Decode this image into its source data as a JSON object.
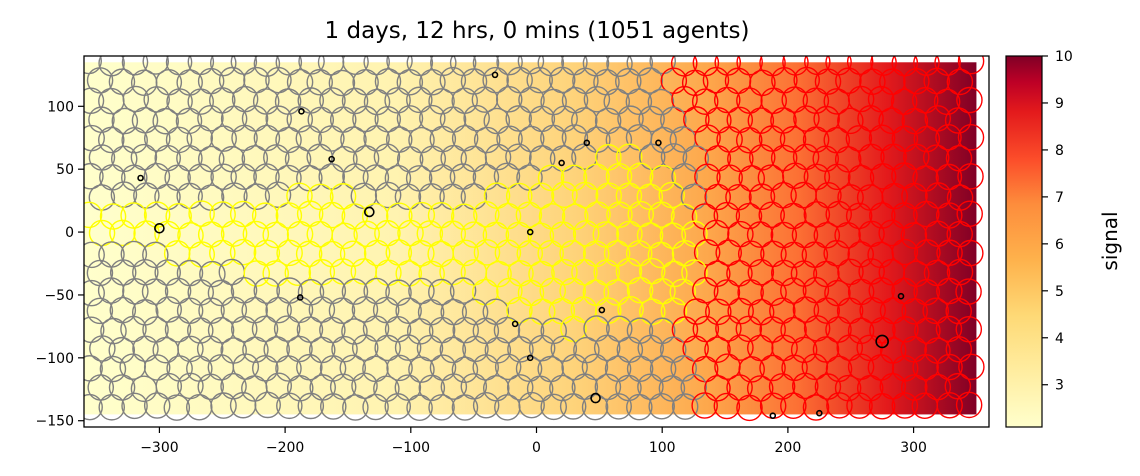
{
  "chart_data": {
    "type": "scatter",
    "title": "1 days, 12 hrs, 0 mins (1051 agents)",
    "xlabel": "",
    "ylabel": "",
    "xlim": [
      -360,
      360
    ],
    "ylim": [
      -155,
      140
    ],
    "xticks": [
      -300,
      -200,
      -100,
      0,
      100,
      200,
      300
    ],
    "xtick_labels": [
      "−300",
      "−200",
      "−100",
      "0",
      "100",
      "200",
      "300"
    ],
    "yticks": [
      100,
      50,
      0,
      -50,
      -100,
      -150
    ],
    "ytick_labels": [
      "100",
      "50",
      "0",
      "−50",
      "−100",
      "−150"
    ],
    "background": {
      "name": "signal",
      "x_range": [
        -360,
        350
      ],
      "y_range": [
        -145,
        135
      ],
      "note_values": "signal rises left to right from about 2 to about 10"
    },
    "colorbar": {
      "label": "signal",
      "range": [
        2.1,
        10
      ],
      "ticks": [
        3,
        4,
        5,
        6,
        7,
        8,
        9,
        10
      ],
      "colormap": "YlOrRd"
    },
    "series": [
      {
        "color": "#808080",
        "region": "default agents",
        "marker_radius_units": 10
      },
      {
        "color": "#ffff00",
        "region": "yellow agents",
        "marker_radius_units": 10
      },
      {
        "color": "#ff0000",
        "region": "red agents",
        "marker_radius_units": 10
      },
      {
        "color": "#000000",
        "region": "dividing agents",
        "marker_radius_units": 3,
        "points": [
          [
            -300,
            3
          ],
          [
            -133,
            16
          ],
          [
            275,
            -87
          ],
          [
            47,
            -132
          ],
          [
            40,
            71
          ],
          [
            -5,
            0
          ],
          [
            20,
            55
          ],
          [
            -163,
            58
          ],
          [
            -187,
            96
          ],
          [
            -188,
            -52
          ],
          [
            52,
            -62
          ],
          [
            188,
            -146
          ],
          [
            225,
            -144
          ],
          [
            290,
            -51
          ],
          [
            -315,
            43
          ],
          [
            -33,
            125
          ],
          [
            97,
            71
          ],
          [
            -5,
            -100
          ],
          [
            -17,
            -73
          ]
        ]
      }
    ],
    "yellow_region_polygon": [
      [
        -360,
        18
      ],
      [
        -330,
        25
      ],
      [
        -260,
        20
      ],
      [
        -200,
        28
      ],
      [
        -160,
        35
      ],
      [
        -120,
        20
      ],
      [
        -60,
        18
      ],
      [
        -30,
        30
      ],
      [
        0,
        40
      ],
      [
        30,
        55
      ],
      [
        70,
        62
      ],
      [
        110,
        45
      ],
      [
        130,
        10
      ],
      [
        125,
        -45
      ],
      [
        110,
        -65
      ],
      [
        60,
        -68
      ],
      [
        40,
        -80
      ],
      [
        -20,
        -70
      ],
      [
        -40,
        -55
      ],
      [
        -70,
        -40
      ],
      [
        -130,
        -35
      ],
      [
        -170,
        -45
      ],
      [
        -210,
        -40
      ],
      [
        -250,
        -25
      ],
      [
        -300,
        -15
      ],
      [
        -360,
        -12
      ]
    ]
  }
}
